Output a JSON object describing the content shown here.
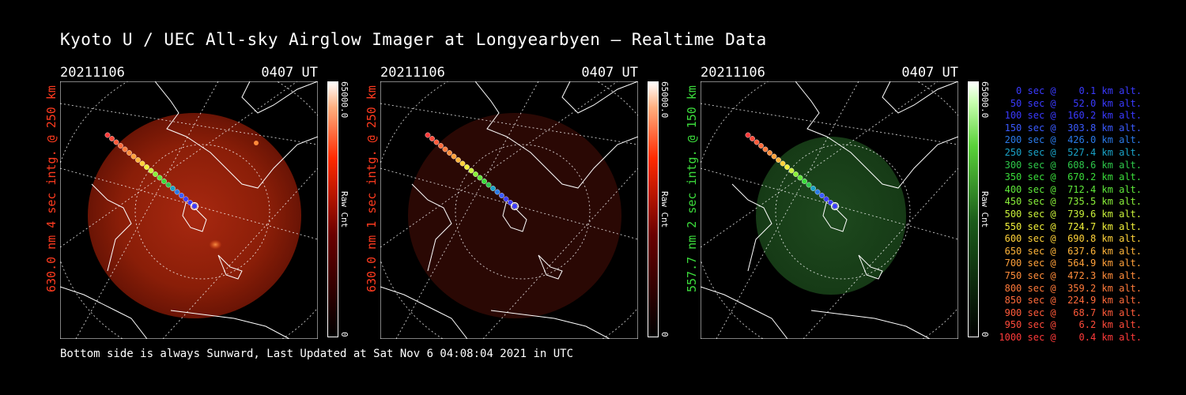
{
  "title": "Kyoto U / UEC All-sky Airglow Imager at Longyearbyen — Realtime Data",
  "footer": "Bottom side is always Sunward, Last Updated at Sat Nov  6 04:08:04 2021 in UTC",
  "panels": [
    {
      "date": "20211106",
      "time": "0407 UT",
      "ylabel": "630.0 nm 4 sec intg. @ 250 km",
      "ylabel_color": "#ff3b1f",
      "cbar_max": "65000.0",
      "cbar_min": "0",
      "cbar_unit": "Raw Cnt",
      "colormap": "red"
    },
    {
      "date": "20211106",
      "time": "0407 UT",
      "ylabel": "630.0 nm 1 sec intg. @ 250 km",
      "ylabel_color": "#ff3b1f",
      "cbar_max": "65000.0",
      "cbar_min": "0",
      "cbar_unit": "Raw Cnt",
      "colormap": "red"
    },
    {
      "date": "20211106",
      "time": "0407 UT",
      "ylabel": "557.7 nm 2 sec intg. @ 150 km",
      "ylabel_color": "#3cdc3c",
      "cbar_max": "65000.0",
      "cbar_min": "0",
      "cbar_unit": "Raw Cnt",
      "colormap": "green"
    }
  ],
  "legend": [
    {
      "text": "   0 sec @    0.1 km alt.",
      "color": "#3a3aff"
    },
    {
      "text": "  50 sec @   52.0 km alt.",
      "color": "#3a3aff"
    },
    {
      "text": " 100 sec @  160.2 km alt.",
      "color": "#3a3aff"
    },
    {
      "text": " 150 sec @  303.8 km alt.",
      "color": "#3a5aff"
    },
    {
      "text": " 200 sec @  426.0 km alt.",
      "color": "#2a7ae8"
    },
    {
      "text": " 250 sec @  527.4 km alt.",
      "color": "#1aa3c8"
    },
    {
      "text": " 300 sec @  608.6 km alt.",
      "color": "#2ec84a"
    },
    {
      "text": " 350 sec @  670.2 km alt.",
      "color": "#3adc3a"
    },
    {
      "text": " 400 sec @  712.4 km alt.",
      "color": "#5ee83a"
    },
    {
      "text": " 450 sec @  735.5 km alt.",
      "color": "#8af03a"
    },
    {
      "text": " 500 sec @  739.6 km alt.",
      "color": "#c8f03a"
    },
    {
      "text": " 550 sec @  724.7 km alt.",
      "color": "#f0f03a"
    },
    {
      "text": " 600 sec @  690.8 km alt.",
      "color": "#ffd23a"
    },
    {
      "text": " 650 sec @  637.6 km alt.",
      "color": "#ffb43a"
    },
    {
      "text": " 700 sec @  564.9 km alt.",
      "color": "#ffa03a"
    },
    {
      "text": " 750 sec @  472.3 km alt.",
      "color": "#ff8c3a"
    },
    {
      "text": " 800 sec @  359.2 km alt.",
      "color": "#ff7a3a"
    },
    {
      "text": " 850 sec @  224.9 km alt.",
      "color": "#ff6a3a"
    },
    {
      "text": " 900 sec @   68.7 km alt.",
      "color": "#ff5a3a"
    },
    {
      "text": " 950 sec @    6.2 km alt.",
      "color": "#ff4a3a"
    },
    {
      "text": "1000 sec @    0.4 km alt.",
      "color": "#ff3a3a"
    }
  ]
}
